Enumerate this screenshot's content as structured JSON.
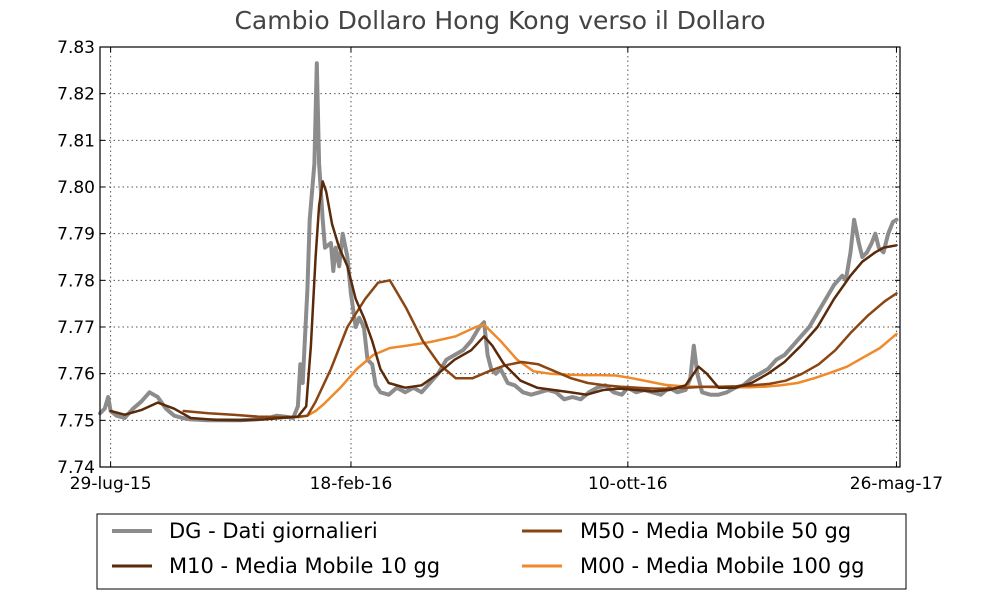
{
  "chart_data": {
    "type": "line",
    "title": "Cambio Dollaro  Hong Kong verso il Dollaro",
    "xlabel": "",
    "ylabel": "",
    "x_tick_labels": [
      "29-lug-15",
      "18-feb-16",
      "10-ott-16",
      "26-mag-17"
    ],
    "x_tick_dates": [
      "2015-07-29",
      "2016-02-18",
      "2016-10-10",
      "2017-05-26"
    ],
    "xlim": [
      "2015-07-20",
      "2017-05-29"
    ],
    "y_ticks": [
      "7.74",
      "7.75",
      "7.76",
      "7.77",
      "7.78",
      "7.79",
      "7.80",
      "7.81",
      "7.82",
      "7.83"
    ],
    "ylim": [
      7.74,
      7.83
    ],
    "grid": true,
    "legend_placement": "bottom",
    "series": [
      {
        "name": "DG - Dati giornalieri",
        "color": "#8c8c8c",
        "points": [
          [
            "2015-07-20",
            7.7515
          ],
          [
            "2015-07-24",
            7.7525
          ],
          [
            "2015-07-27",
            7.755
          ],
          [
            "2015-07-29",
            7.752
          ],
          [
            "2015-08-03",
            7.751
          ],
          [
            "2015-08-10",
            7.7505
          ],
          [
            "2015-08-17",
            7.7525
          ],
          [
            "2015-08-24",
            7.754
          ],
          [
            "2015-08-31",
            7.756
          ],
          [
            "2015-09-07",
            7.755
          ],
          [
            "2015-09-14",
            7.7525
          ],
          [
            "2015-09-21",
            7.751
          ],
          [
            "2015-09-28",
            7.7505
          ],
          [
            "2015-10-05",
            7.7502
          ],
          [
            "2015-10-19",
            7.75
          ],
          [
            "2015-11-02",
            7.75
          ],
          [
            "2015-11-16",
            7.75
          ],
          [
            "2015-11-30",
            7.7502
          ],
          [
            "2015-12-10",
            7.7505
          ],
          [
            "2015-12-17",
            7.751
          ],
          [
            "2015-12-24",
            7.7508
          ],
          [
            "2015-12-31",
            7.7505
          ],
          [
            "2016-01-04",
            7.753
          ],
          [
            "2016-01-06",
            7.762
          ],
          [
            "2016-01-08",
            7.758
          ],
          [
            "2016-01-12",
            7.778
          ],
          [
            "2016-01-14",
            7.793
          ],
          [
            "2016-01-18",
            7.805
          ],
          [
            "2016-01-20",
            7.8265
          ],
          [
            "2016-01-22",
            7.805
          ],
          [
            "2016-01-25",
            7.793
          ],
          [
            "2016-01-27",
            7.787
          ],
          [
            "2016-02-01",
            7.788
          ],
          [
            "2016-02-03",
            7.782
          ],
          [
            "2016-02-05",
            7.787
          ],
          [
            "2016-02-08",
            7.783
          ],
          [
            "2016-02-11",
            7.79
          ],
          [
            "2016-02-15",
            7.785
          ],
          [
            "2016-02-18",
            7.777
          ],
          [
            "2016-02-22",
            7.77
          ],
          [
            "2016-02-25",
            7.772
          ],
          [
            "2016-02-29",
            7.77
          ],
          [
            "2016-03-03",
            7.763
          ],
          [
            "2016-03-07",
            7.762
          ],
          [
            "2016-03-10",
            7.7575
          ],
          [
            "2016-03-14",
            7.756
          ],
          [
            "2016-03-21",
            7.7555
          ],
          [
            "2016-03-28",
            7.757
          ],
          [
            "2016-04-04",
            7.756
          ],
          [
            "2016-04-11",
            7.757
          ],
          [
            "2016-04-18",
            7.756
          ],
          [
            "2016-04-25",
            7.758
          ],
          [
            "2016-05-02",
            7.76
          ],
          [
            "2016-05-09",
            7.763
          ],
          [
            "2016-05-16",
            7.764
          ],
          [
            "2016-05-23",
            7.765
          ],
          [
            "2016-05-30",
            7.767
          ],
          [
            "2016-06-06",
            7.77
          ],
          [
            "2016-06-10",
            7.771
          ],
          [
            "2016-06-13",
            7.764
          ],
          [
            "2016-06-16",
            7.761
          ],
          [
            "2016-06-20",
            7.76
          ],
          [
            "2016-06-24",
            7.761
          ],
          [
            "2016-06-30",
            7.758
          ],
          [
            "2016-07-06",
            7.7575
          ],
          [
            "2016-07-13",
            7.756
          ],
          [
            "2016-07-20",
            7.7555
          ],
          [
            "2016-07-27",
            7.756
          ],
          [
            "2016-08-03",
            7.7565
          ],
          [
            "2016-08-10",
            7.756
          ],
          [
            "2016-08-17",
            7.7545
          ],
          [
            "2016-08-24",
            7.755
          ],
          [
            "2016-08-31",
            7.7545
          ],
          [
            "2016-09-07",
            7.756
          ],
          [
            "2016-09-14",
            7.757
          ],
          [
            "2016-09-21",
            7.7575
          ],
          [
            "2016-09-28",
            7.756
          ],
          [
            "2016-10-05",
            7.7555
          ],
          [
            "2016-10-10",
            7.757
          ],
          [
            "2016-10-17",
            7.756
          ],
          [
            "2016-10-24",
            7.7565
          ],
          [
            "2016-10-31",
            7.756
          ],
          [
            "2016-11-07",
            7.7555
          ],
          [
            "2016-11-14",
            7.757
          ],
          [
            "2016-11-21",
            7.756
          ],
          [
            "2016-11-28",
            7.7565
          ],
          [
            "2016-12-02",
            7.759
          ],
          [
            "2016-12-05",
            7.766
          ],
          [
            "2016-12-08",
            7.76
          ],
          [
            "2016-12-12",
            7.756
          ],
          [
            "2016-12-19",
            7.7555
          ],
          [
            "2016-12-26",
            7.7555
          ],
          [
            "2017-01-02",
            7.756
          ],
          [
            "2017-01-09",
            7.757
          ],
          [
            "2017-01-16",
            7.7575
          ],
          [
            "2017-01-23",
            7.759
          ],
          [
            "2017-01-30",
            7.76
          ],
          [
            "2017-02-06",
            7.761
          ],
          [
            "2017-02-13",
            7.763
          ],
          [
            "2017-02-20",
            7.764
          ],
          [
            "2017-02-27",
            7.766
          ],
          [
            "2017-03-06",
            7.768
          ],
          [
            "2017-03-13",
            7.77
          ],
          [
            "2017-03-20",
            7.773
          ],
          [
            "2017-03-27",
            7.776
          ],
          [
            "2017-04-03",
            7.779
          ],
          [
            "2017-04-10",
            7.781
          ],
          [
            "2017-04-13",
            7.78
          ],
          [
            "2017-04-17",
            7.786
          ],
          [
            "2017-04-20",
            7.793
          ],
          [
            "2017-04-24",
            7.788
          ],
          [
            "2017-04-27",
            7.785
          ],
          [
            "2017-05-01",
            7.786
          ],
          [
            "2017-05-05",
            7.788
          ],
          [
            "2017-05-08",
            7.79
          ],
          [
            "2017-05-11",
            7.787
          ],
          [
            "2017-05-15",
            7.786
          ],
          [
            "2017-05-19",
            7.79
          ],
          [
            "2017-05-23",
            7.7925
          ],
          [
            "2017-05-26",
            7.793
          ]
        ]
      },
      {
        "name": "M10 - Media Mobile 10 gg",
        "color": "#5a2a0a",
        "points": [
          [
            "2015-07-29",
            7.752
          ],
          [
            "2015-08-10",
            7.7512
          ],
          [
            "2015-08-24",
            7.7522
          ],
          [
            "2015-09-07",
            7.7538
          ],
          [
            "2015-09-21",
            7.7525
          ],
          [
            "2015-10-05",
            7.7505
          ],
          [
            "2015-10-26",
            7.7501
          ],
          [
            "2015-11-16",
            7.75
          ],
          [
            "2015-12-07",
            7.7502
          ],
          [
            "2015-12-21",
            7.7505
          ],
          [
            "2016-01-04",
            7.7508
          ],
          [
            "2016-01-11",
            7.753
          ],
          [
            "2016-01-15",
            7.766
          ],
          [
            "2016-01-19",
            7.785
          ],
          [
            "2016-01-22",
            7.796
          ],
          [
            "2016-01-25",
            7.8012
          ],
          [
            "2016-01-28",
            7.799
          ],
          [
            "2016-02-02",
            7.792
          ],
          [
            "2016-02-08",
            7.787
          ],
          [
            "2016-02-15",
            7.783
          ],
          [
            "2016-02-22",
            7.776
          ],
          [
            "2016-02-29",
            7.772
          ],
          [
            "2016-03-07",
            7.767
          ],
          [
            "2016-03-14",
            7.761
          ],
          [
            "2016-03-21",
            7.758
          ],
          [
            "2016-04-04",
            7.757
          ],
          [
            "2016-04-18",
            7.7575
          ],
          [
            "2016-05-02",
            7.76
          ],
          [
            "2016-05-16",
            7.763
          ],
          [
            "2016-05-30",
            7.765
          ],
          [
            "2016-06-10",
            7.768
          ],
          [
            "2016-06-17",
            7.766
          ],
          [
            "2016-06-27",
            7.762
          ],
          [
            "2016-07-11",
            7.7585
          ],
          [
            "2016-07-25",
            7.757
          ],
          [
            "2016-08-08",
            7.7565
          ],
          [
            "2016-08-22",
            7.756
          ],
          [
            "2016-09-05",
            7.7555
          ],
          [
            "2016-09-19",
            7.7565
          ],
          [
            "2016-10-03",
            7.7568
          ],
          [
            "2016-10-17",
            7.7565
          ],
          [
            "2016-10-31",
            7.7562
          ],
          [
            "2016-11-14",
            7.7565
          ],
          [
            "2016-11-28",
            7.7575
          ],
          [
            "2016-12-09",
            7.7615
          ],
          [
            "2016-12-16",
            7.76
          ],
          [
            "2016-12-26",
            7.757
          ],
          [
            "2017-01-09",
            7.757
          ],
          [
            "2017-01-23",
            7.758
          ],
          [
            "2017-02-06",
            7.76
          ],
          [
            "2017-02-20",
            7.7625
          ],
          [
            "2017-03-06",
            7.766
          ],
          [
            "2017-03-20",
            7.77
          ],
          [
            "2017-04-03",
            7.776
          ],
          [
            "2017-04-17",
            7.781
          ],
          [
            "2017-04-27",
            7.784
          ],
          [
            "2017-05-08",
            7.786
          ],
          [
            "2017-05-15",
            7.787
          ],
          [
            "2017-05-26",
            7.7875
          ]
        ]
      },
      {
        "name": "M50 - Media Mobile 50 gg",
        "color": "#8b4513",
        "points": [
          [
            "2015-09-29",
            7.752
          ],
          [
            "2015-10-20",
            7.7515
          ],
          [
            "2015-11-10",
            7.7512
          ],
          [
            "2015-12-01",
            7.7508
          ],
          [
            "2015-12-22",
            7.7507
          ],
          [
            "2016-01-05",
            7.7508
          ],
          [
            "2016-01-12",
            7.751
          ],
          [
            "2016-01-19",
            7.754
          ],
          [
            "2016-02-01",
            7.761
          ],
          [
            "2016-02-15",
            7.77
          ],
          [
            "2016-03-01",
            7.776
          ],
          [
            "2016-03-12",
            7.7795
          ],
          [
            "2016-03-22",
            7.78
          ],
          [
            "2016-04-05",
            7.774
          ],
          [
            "2016-04-19",
            7.767
          ],
          [
            "2016-05-03",
            7.762
          ],
          [
            "2016-05-17",
            7.759
          ],
          [
            "2016-05-31",
            7.759
          ],
          [
            "2016-06-14",
            7.7605
          ],
          [
            "2016-06-28",
            7.7618
          ],
          [
            "2016-07-12",
            7.7625
          ],
          [
            "2016-07-26",
            7.762
          ],
          [
            "2016-08-09",
            7.7605
          ],
          [
            "2016-08-23",
            7.759
          ],
          [
            "2016-09-06",
            7.758
          ],
          [
            "2016-09-20",
            7.7575
          ],
          [
            "2016-10-04",
            7.7572
          ],
          [
            "2016-10-18",
            7.757
          ],
          [
            "2016-11-01",
            7.7568
          ],
          [
            "2016-11-15",
            7.7568
          ],
          [
            "2016-11-29",
            7.757
          ],
          [
            "2016-12-13",
            7.7572
          ],
          [
            "2016-12-27",
            7.7572
          ],
          [
            "2017-01-10",
            7.7573
          ],
          [
            "2017-01-24",
            7.7575
          ],
          [
            "2017-02-07",
            7.7578
          ],
          [
            "2017-02-21",
            7.7585
          ],
          [
            "2017-03-07",
            7.76
          ],
          [
            "2017-03-21",
            7.762
          ],
          [
            "2017-04-04",
            7.765
          ],
          [
            "2017-04-18",
            7.769
          ],
          [
            "2017-05-02",
            7.7725
          ],
          [
            "2017-05-16",
            7.7755
          ],
          [
            "2017-05-26",
            7.7772
          ]
        ]
      },
      {
        "name": "M00 - Media Mobile 100 gg",
        "color": "#ef8a2c",
        "points": [
          [
            "2015-12-08",
            7.7508
          ],
          [
            "2015-12-22",
            7.7507
          ],
          [
            "2016-01-05",
            7.7507
          ],
          [
            "2016-01-12",
            7.751
          ],
          [
            "2016-01-19",
            7.752
          ],
          [
            "2016-01-26",
            7.7535
          ],
          [
            "2016-02-09",
            7.757
          ],
          [
            "2016-02-23",
            7.761
          ],
          [
            "2016-03-08",
            7.764
          ],
          [
            "2016-03-22",
            7.7655
          ],
          [
            "2016-04-05",
            7.766
          ],
          [
            "2016-04-26",
            7.7668
          ],
          [
            "2016-05-17",
            7.768
          ],
          [
            "2016-06-03",
            7.77
          ],
          [
            "2016-06-10",
            7.7705
          ],
          [
            "2016-06-24",
            7.767
          ],
          [
            "2016-07-08",
            7.763
          ],
          [
            "2016-07-22",
            7.7605
          ],
          [
            "2016-08-05",
            7.76
          ],
          [
            "2016-08-19",
            7.7598
          ],
          [
            "2016-09-02",
            7.7597
          ],
          [
            "2016-09-16",
            7.7597
          ],
          [
            "2016-09-30",
            7.7596
          ],
          [
            "2016-10-14",
            7.759
          ],
          [
            "2016-10-28",
            7.7583
          ],
          [
            "2016-11-11",
            7.7576
          ],
          [
            "2016-11-25",
            7.7573
          ],
          [
            "2016-12-09",
            7.7572
          ],
          [
            "2016-12-23",
            7.7571
          ],
          [
            "2017-01-06",
            7.7571
          ],
          [
            "2017-01-20",
            7.7571
          ],
          [
            "2017-02-03",
            7.7572
          ],
          [
            "2017-02-17",
            7.7575
          ],
          [
            "2017-03-03",
            7.758
          ],
          [
            "2017-03-17",
            7.759
          ],
          [
            "2017-03-31",
            7.7602
          ],
          [
            "2017-04-14",
            7.7615
          ],
          [
            "2017-04-28",
            7.7635
          ],
          [
            "2017-05-12",
            7.7655
          ],
          [
            "2017-05-26",
            7.7685
          ]
        ]
      }
    ]
  }
}
